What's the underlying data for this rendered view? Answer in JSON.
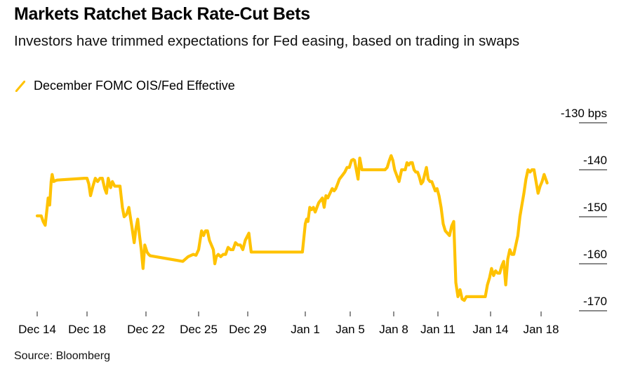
{
  "title": "Markets Ratchet Back Rate-Cut Bets",
  "subtitle": "Investors have trimmed expectations for Fed easing, based on trading in swaps",
  "source": "Source: Bloomberg",
  "colors": {
    "series": "#FFC200",
    "text": "#000000",
    "grid": "#444444"
  },
  "chart_data": {
    "type": "line",
    "title": "Markets Ratchet Back Rate-Cut Bets",
    "subtitle": "Investors have trimmed expectations for Fed easing, based on trading in swaps",
    "xlabel": "",
    "ylabel": "bps",
    "ylim": [
      -172,
      -130
    ],
    "y_ticks": [
      {
        "value": -130,
        "label": "-130 bps"
      },
      {
        "value": -140,
        "label": "-140"
      },
      {
        "value": -150,
        "label": "-150"
      },
      {
        "value": -160,
        "label": "-160"
      },
      {
        "value": -170,
        "label": "-170"
      }
    ],
    "x_ticks": [
      "Dec 14",
      "Dec 18",
      "Dec 22",
      "Dec 25",
      "Dec 29",
      "Jan 1",
      "Jan 5",
      "Jan 8",
      "Jan 11",
      "Jan 14",
      "Jan 18"
    ],
    "grid": "horizontal",
    "legend": {
      "position": "top-left",
      "entries": [
        "December FOMC OIS/Fed Effective"
      ]
    },
    "series": [
      {
        "name": "December FOMC OIS/Fed Effective",
        "x_unit": "tick index (0 = Dec 14, 10 = Jan 18)",
        "x": [
          0.0,
          0.08,
          0.12,
          0.16,
          0.2,
          0.22,
          0.25,
          0.28,
          0.3,
          0.33,
          0.37,
          0.4,
          0.95,
          1.0,
          1.03,
          1.06,
          1.1,
          1.14,
          1.18,
          1.22,
          1.26,
          1.3,
          1.33,
          1.36,
          1.4,
          1.43,
          1.47,
          1.52,
          1.56,
          1.6,
          1.63,
          1.67,
          1.71,
          1.76,
          1.8,
          1.83,
          1.86,
          1.89,
          1.92,
          1.95,
          1.98,
          2.02,
          2.05,
          2.08,
          2.7,
          2.8,
          2.9,
          2.95,
          3.0,
          3.03,
          3.06,
          3.1,
          3.14,
          3.18,
          3.22,
          3.26,
          3.3,
          3.33,
          3.36,
          3.4,
          3.45,
          3.5,
          3.55,
          3.6,
          3.65,
          3.7,
          3.75,
          3.8,
          3.85,
          3.9,
          3.95,
          4.02,
          4.06,
          4.95,
          5.0,
          5.03,
          5.06,
          5.1,
          5.14,
          5.18,
          5.22,
          5.26,
          5.3,
          5.34,
          5.38,
          5.42,
          5.46,
          5.5,
          5.55,
          5.6,
          5.64,
          5.68,
          5.72,
          5.76,
          5.8,
          5.84,
          5.88,
          5.93,
          5.98,
          6.03,
          6.07,
          6.1,
          6.14,
          6.18,
          6.22,
          6.27,
          6.33,
          6.4,
          6.8,
          6.85,
          6.9,
          6.94,
          6.98,
          7.02,
          7.06,
          7.12,
          7.18,
          7.22,
          7.26,
          7.3,
          7.34,
          7.38,
          7.42,
          7.46,
          7.5,
          7.54,
          7.58,
          7.62,
          7.66,
          7.7,
          7.74,
          7.78,
          7.82,
          7.86,
          7.9,
          7.94,
          7.98,
          8.02,
          8.06,
          8.1,
          8.14,
          8.18,
          8.22,
          8.26,
          8.3,
          8.34,
          8.38,
          8.42,
          8.46,
          8.5,
          8.54,
          8.58,
          8.62,
          8.66,
          8.7,
          8.74,
          8.78,
          8.82,
          8.86,
          8.9,
          8.94,
          8.98,
          9.02,
          9.06,
          9.1,
          9.14,
          9.18,
          9.22,
          9.26,
          9.3,
          9.34,
          9.38,
          9.42,
          9.46,
          9.5,
          9.54,
          9.58,
          9.62,
          9.66,
          9.7,
          9.74,
          9.78,
          9.82,
          9.86,
          9.9,
          9.94,
          9.98,
          10.02,
          10.06,
          10.12
        ],
        "values": [
          -149.8,
          -149.8,
          -151.0,
          -151.8,
          -148.0,
          -146.0,
          -147.5,
          -142.5,
          -141.0,
          -142.5,
          -142.3,
          -142.2,
          -141.8,
          -141.8,
          -143.0,
          -145.5,
          -143.5,
          -141.8,
          -142.5,
          -141.8,
          -141.8,
          -144.0,
          -145.0,
          -141.8,
          -143.8,
          -142.5,
          -143.5,
          -143.5,
          -143.5,
          -148.0,
          -150.0,
          -149.5,
          -148.0,
          -152.0,
          -155.5,
          -152.5,
          -150.5,
          -154.0,
          -157.0,
          -161.0,
          -156.0,
          -157.5,
          -158.0,
          -158.3,
          -159.5,
          -158.5,
          -158.0,
          -158.2,
          -157.0,
          -155.0,
          -153.0,
          -154.0,
          -153.0,
          -153.0,
          -155.0,
          -156.0,
          -157.0,
          -160.0,
          -158.5,
          -158.0,
          -158.5,
          -158.0,
          -158.0,
          -156.5,
          -157.0,
          -157.0,
          -155.5,
          -156.0,
          -156.0,
          -157.0,
          -155.0,
          -153.5,
          -157.5,
          -157.5,
          -151.5,
          -150.5,
          -151.0,
          -148.0,
          -148.5,
          -148.0,
          -149.0,
          -148.0,
          -147.0,
          -146.5,
          -146.0,
          -148.0,
          -145.5,
          -146.0,
          -145.0,
          -144.0,
          -144.5,
          -144.0,
          -143.0,
          -142.0,
          -141.5,
          -141.0,
          -140.5,
          -139.5,
          -139.5,
          -138.0,
          -137.8,
          -138.0,
          -140.0,
          -142.0,
          -137.5,
          -140.0,
          -140.0,
          -140.0,
          -140.0,
          -139.5,
          -138.0,
          -137.0,
          -138.0,
          -140.0,
          -141.0,
          -142.5,
          -140.0,
          -140.0,
          -140.0,
          -138.5,
          -139.0,
          -138.5,
          -138.5,
          -140.0,
          -140.5,
          -140.5,
          -141.5,
          -143.0,
          -142.5,
          -141.0,
          -139.5,
          -142.0,
          -142.5,
          -142.5,
          -143.5,
          -144.5,
          -144.0,
          -145.5,
          -148.0,
          -151.5,
          -153.0,
          -153.5,
          -154.0,
          -152.0,
          -151.0,
          -164.0,
          -167.0,
          -165.5,
          -167.5,
          -167.8,
          -167.0,
          -167.0,
          -167.0,
          -167.0,
          -167.0,
          -167.0,
          -167.0,
          -167.0,
          -167.0,
          -167.0,
          -164.5,
          -163.0,
          -161.0,
          -162.5,
          -161.5,
          -162.0,
          -162.0,
          -160.5,
          -159.5,
          -164.5,
          -159.0,
          -157.0,
          -158.0,
          -158.0,
          -156.0,
          -154.0,
          -150.0,
          -147.5,
          -145.0,
          -142.0,
          -140.0,
          -140.5,
          -140.0,
          -140.0,
          -142.5,
          -145.0,
          -143.5,
          -142.5,
          -141.0,
          -142.8
        ]
      }
    ]
  }
}
